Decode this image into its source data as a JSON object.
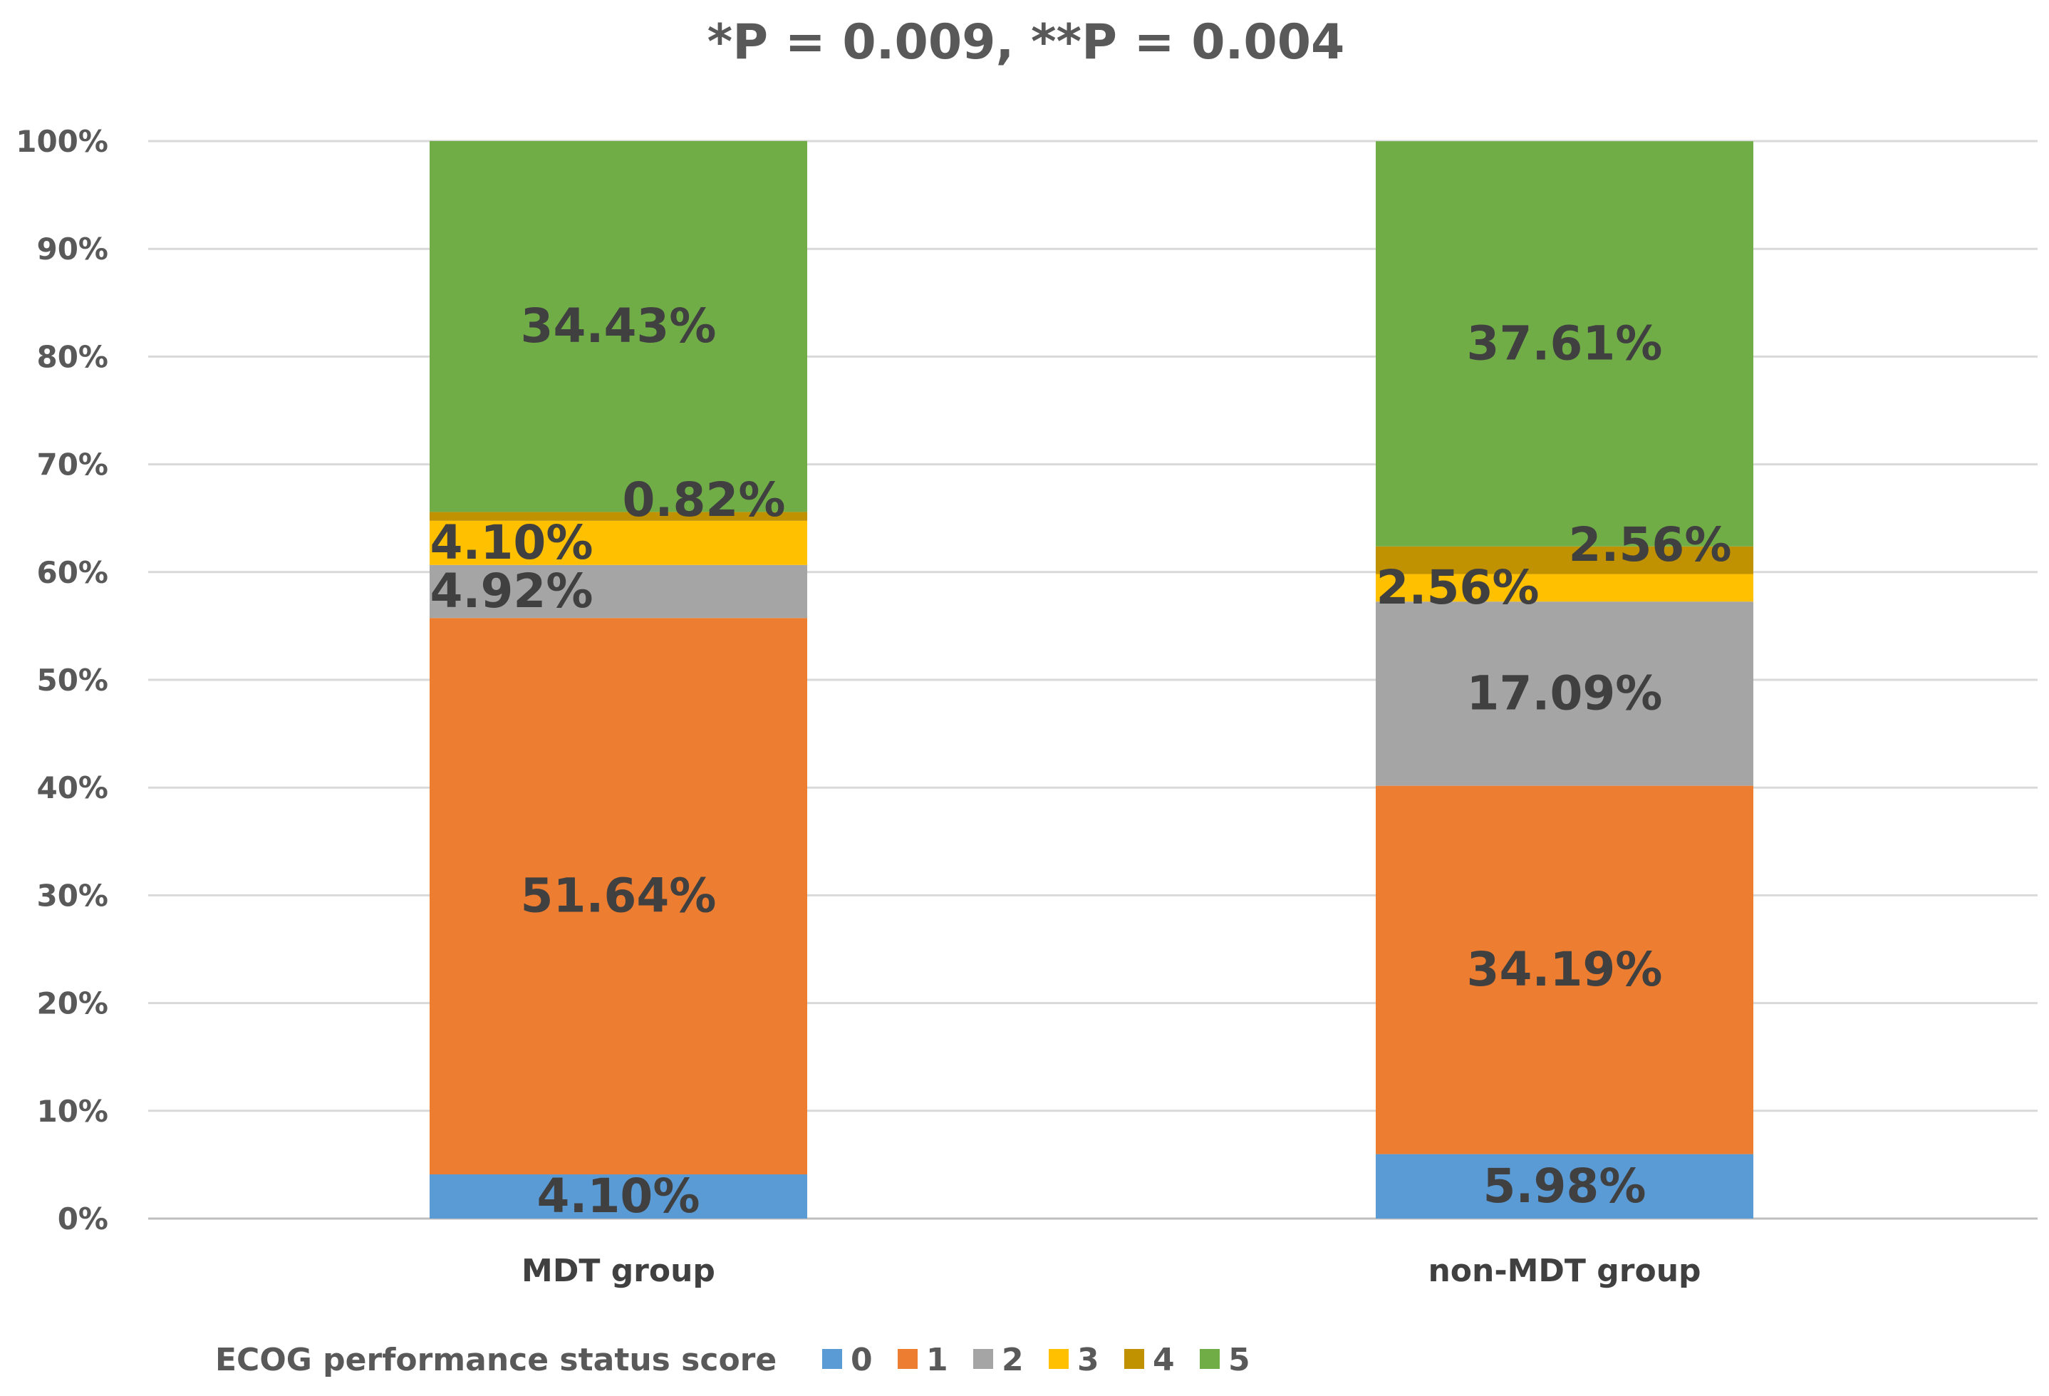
{
  "chart_data": {
    "type": "bar",
    "stacked": true,
    "title": "*P = 0.009, **P = 0.004",
    "categories": [
      "MDT group",
      "non-MDT group"
    ],
    "ylim": [
      0,
      100
    ],
    "yticks": [
      "0%",
      "10%",
      "20%",
      "30%",
      "40%",
      "50%",
      "60%",
      "70%",
      "80%",
      "90%",
      "100%"
    ],
    "legend_title": "ECOG performance status score",
    "legend_position": "bottom",
    "grid": true,
    "series": [
      {
        "name": "0",
        "color": "#5B9BD5",
        "values": [
          4.1,
          5.98
        ],
        "labels": [
          "4.10%",
          "5.98%"
        ]
      },
      {
        "name": "1",
        "color": "#ED7D31",
        "values": [
          51.64,
          34.19
        ],
        "labels": [
          "51.64%",
          "34.19%"
        ]
      },
      {
        "name": "2",
        "color": "#A5A5A5",
        "values": [
          4.92,
          17.09
        ],
        "labels": [
          "4.92%",
          "17.09%"
        ]
      },
      {
        "name": "3",
        "color": "#FFC000",
        "values": [
          4.1,
          2.56
        ],
        "labels": [
          "4.10%",
          "2.56%"
        ]
      },
      {
        "name": "4",
        "color": "#C09100",
        "values": [
          0.82,
          2.56
        ],
        "labels": [
          "0.82%",
          "2.56%"
        ]
      },
      {
        "name": "5",
        "color": "#70AD47",
        "values": [
          34.43,
          37.61
        ],
        "labels": [
          "34.43%",
          "37.61%"
        ]
      }
    ]
  }
}
